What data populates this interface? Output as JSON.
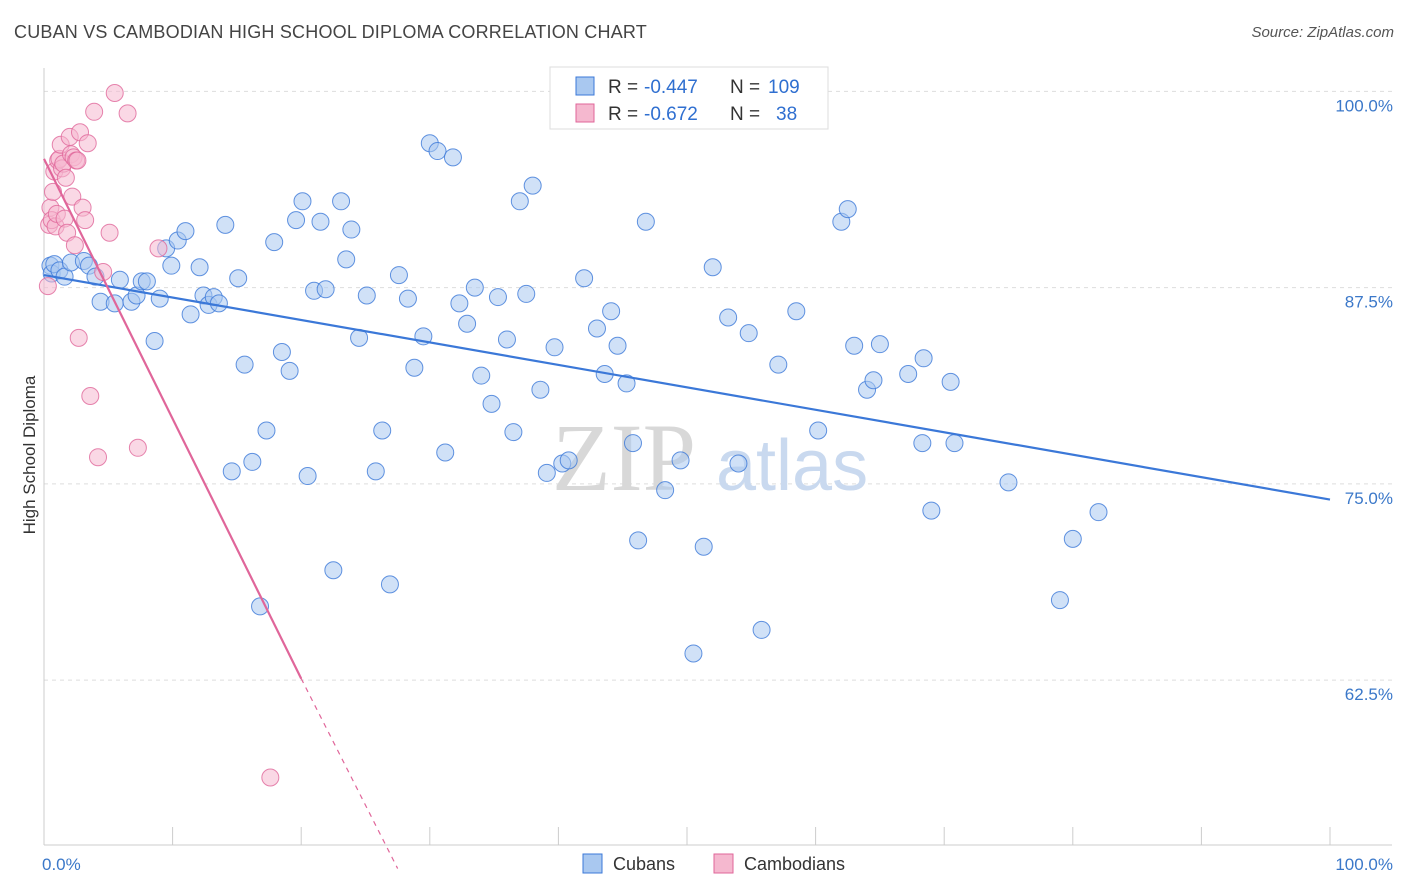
{
  "chart_data": {
    "type": "scatter",
    "title": "CUBAN VS CAMBODIAN HIGH SCHOOL DIPLOMA CORRELATION CHART",
    "source": "Source: ZipAtlas.com",
    "xlabel": "",
    "ylabel": "High School Diploma",
    "xlim": [
      0,
      100
    ],
    "ylim": [
      52,
      102
    ],
    "x_tick_labels": [
      {
        "value": 0,
        "label": "0.0%"
      },
      {
        "value": 100,
        "label": "100.0%"
      }
    ],
    "y_tick_labels": [
      {
        "value": 100,
        "label": "100.0%"
      },
      {
        "value": 87.5,
        "label": "87.5%"
      },
      {
        "value": 75,
        "label": "75.0%"
      },
      {
        "value": 62.5,
        "label": "62.5%"
      }
    ],
    "grid": true,
    "watermark": {
      "zip": "ZIP",
      "atlas": "atlas"
    },
    "legend": {
      "placement": "top-center",
      "entries": [
        {
          "r_label": "R = ",
          "r_value": "-0.447",
          "n_label": "N = ",
          "n_value": "109"
        },
        {
          "r_label": "R = ",
          "r_value": "-0.672",
          "n_label": "N = ",
          "n_value": "38"
        }
      ]
    },
    "series": [
      {
        "name": "Cubans",
        "color": "#3b78d8",
        "fill": "#a9c8f0",
        "trend": {
          "x0": 0,
          "y0": 88.3,
          "x1": 100,
          "y1": 74
        },
        "points": [
          [
            0.5,
            88.9
          ],
          [
            0.6,
            88.4
          ],
          [
            0.8,
            89.0
          ],
          [
            1.2,
            88.6
          ],
          [
            1.6,
            88.2
          ],
          [
            2.1,
            89.1
          ],
          [
            3.1,
            89.2
          ],
          [
            3.5,
            88.9
          ],
          [
            4.0,
            88.2
          ],
          [
            4.4,
            86.6
          ],
          [
            5.5,
            86.5
          ],
          [
            5.9,
            88.0
          ],
          [
            6.8,
            86.6
          ],
          [
            7.2,
            87.0
          ],
          [
            7.6,
            87.9
          ],
          [
            8.0,
            87.9
          ],
          [
            8.6,
            84.1
          ],
          [
            9.0,
            86.8
          ],
          [
            9.5,
            90.0
          ],
          [
            9.9,
            88.9
          ],
          [
            10.4,
            90.5
          ],
          [
            11.0,
            91.1
          ],
          [
            11.4,
            85.8
          ],
          [
            12.1,
            88.8
          ],
          [
            12.4,
            87.0
          ],
          [
            12.8,
            86.4
          ],
          [
            13.2,
            86.9
          ],
          [
            13.6,
            86.5
          ],
          [
            14.1,
            91.5
          ],
          [
            14.6,
            75.8
          ],
          [
            15.1,
            88.1
          ],
          [
            15.6,
            82.6
          ],
          [
            16.2,
            76.4
          ],
          [
            16.8,
            67.2
          ],
          [
            17.3,
            78.4
          ],
          [
            17.9,
            90.4
          ],
          [
            18.5,
            83.4
          ],
          [
            19.1,
            82.2
          ],
          [
            19.6,
            91.8
          ],
          [
            20.1,
            93.0
          ],
          [
            20.5,
            75.5
          ],
          [
            21.0,
            87.3
          ],
          [
            21.5,
            91.7
          ],
          [
            21.9,
            87.4
          ],
          [
            22.5,
            69.5
          ],
          [
            23.1,
            93.0
          ],
          [
            23.5,
            89.3
          ],
          [
            23.9,
            91.2
          ],
          [
            24.5,
            84.3
          ],
          [
            25.1,
            87.0
          ],
          [
            25.8,
            75.8
          ],
          [
            26.3,
            78.4
          ],
          [
            26.9,
            68.6
          ],
          [
            27.6,
            88.3
          ],
          [
            28.3,
            86.8
          ],
          [
            28.8,
            82.4
          ],
          [
            29.5,
            84.4
          ],
          [
            30.0,
            96.7
          ],
          [
            30.6,
            96.2
          ],
          [
            31.2,
            77.0
          ],
          [
            31.8,
            95.8
          ],
          [
            32.3,
            86.5
          ],
          [
            32.9,
            85.2
          ],
          [
            33.5,
            87.5
          ],
          [
            34.0,
            81.9
          ],
          [
            34.8,
            80.1
          ],
          [
            35.3,
            86.9
          ],
          [
            36.0,
            84.2
          ],
          [
            36.5,
            78.3
          ],
          [
            37.0,
            93.0
          ],
          [
            37.5,
            87.1
          ],
          [
            38.0,
            94.0
          ],
          [
            38.6,
            81.0
          ],
          [
            39.1,
            75.7
          ],
          [
            39.7,
            83.7
          ],
          [
            40.3,
            76.3
          ],
          [
            40.8,
            76.5
          ],
          [
            42.0,
            88.1
          ],
          [
            43.0,
            84.9
          ],
          [
            43.6,
            82.0
          ],
          [
            44.1,
            86.0
          ],
          [
            44.6,
            83.8
          ],
          [
            45.3,
            81.4
          ],
          [
            45.8,
            77.6
          ],
          [
            46.2,
            71.4
          ],
          [
            46.8,
            91.7
          ],
          [
            48.3,
            74.6
          ],
          [
            49.5,
            76.5
          ],
          [
            50.5,
            64.2
          ],
          [
            51.3,
            71.0
          ],
          [
            52.0,
            88.8
          ],
          [
            53.2,
            85.6
          ],
          [
            54.0,
            76.3
          ],
          [
            54.8,
            84.6
          ],
          [
            55.8,
            65.7
          ],
          [
            57.1,
            82.6
          ],
          [
            58.5,
            86.0
          ],
          [
            60.2,
            78.4
          ],
          [
            62.0,
            91.7
          ],
          [
            62.5,
            92.5
          ],
          [
            63.0,
            83.8
          ],
          [
            64.0,
            81.0
          ],
          [
            64.5,
            81.6
          ],
          [
            65.0,
            83.9
          ],
          [
            67.2,
            82.0
          ],
          [
            68.3,
            77.6
          ],
          [
            68.4,
            83.0
          ],
          [
            69.0,
            73.3
          ],
          [
            70.5,
            81.5
          ],
          [
            70.8,
            77.6
          ],
          [
            75.0,
            75.1
          ],
          [
            79.0,
            67.6
          ],
          [
            80.0,
            71.5
          ],
          [
            82.0,
            73.2
          ]
        ]
      },
      {
        "name": "Cambodians",
        "color": "#e0669a",
        "fill": "#f5b8cf",
        "trend": {
          "x0": 0,
          "y0": 95.7,
          "x1": 20,
          "y1": 62.6
        },
        "trend_dashed": {
          "x0": 20,
          "y0": 62.6,
          "x1": 27.5,
          "y1": 50.5
        },
        "points": [
          [
            0.3,
            87.6
          ],
          [
            0.4,
            91.5
          ],
          [
            0.5,
            92.6
          ],
          [
            0.6,
            91.8
          ],
          [
            0.7,
            93.6
          ],
          [
            0.8,
            94.9
          ],
          [
            0.9,
            91.4
          ],
          [
            1.0,
            92.2
          ],
          [
            1.1,
            95.6
          ],
          [
            1.2,
            95.7
          ],
          [
            1.3,
            96.6
          ],
          [
            1.4,
            95.1
          ],
          [
            1.5,
            95.4
          ],
          [
            1.6,
            91.9
          ],
          [
            1.7,
            94.5
          ],
          [
            1.8,
            91.0
          ],
          [
            2.0,
            97.1
          ],
          [
            2.1,
            96.0
          ],
          [
            2.2,
            93.3
          ],
          [
            2.3,
            95.8
          ],
          [
            2.4,
            90.2
          ],
          [
            2.5,
            95.6
          ],
          [
            2.6,
            95.6
          ],
          [
            2.7,
            84.3
          ],
          [
            2.8,
            97.4
          ],
          [
            3.0,
            92.6
          ],
          [
            3.2,
            91.8
          ],
          [
            3.4,
            96.7
          ],
          [
            3.6,
            80.6
          ],
          [
            3.9,
            98.7
          ],
          [
            4.2,
            76.7
          ],
          [
            4.6,
            88.5
          ],
          [
            5.1,
            91.0
          ],
          [
            5.5,
            99.9
          ],
          [
            6.5,
            98.6
          ],
          [
            7.3,
            77.3
          ],
          [
            8.9,
            90.0
          ],
          [
            17.6,
            56.3
          ]
        ]
      }
    ]
  }
}
